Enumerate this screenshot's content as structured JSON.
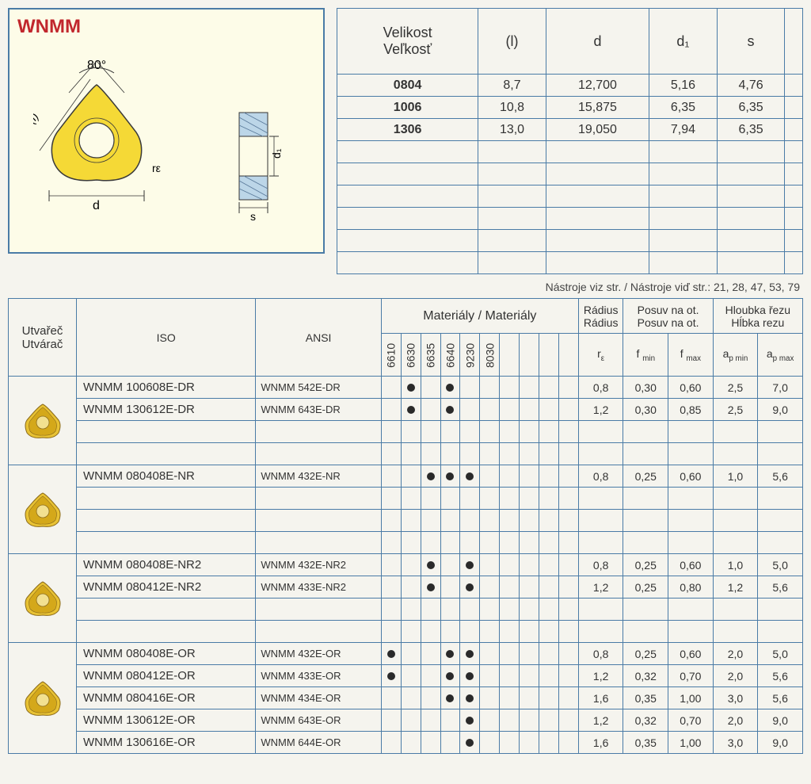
{
  "title": "WNMM",
  "diagram": {
    "angle_label": "80°",
    "r_label": "rε",
    "l_label": "(l)",
    "d_label": "d",
    "d1_label": "d₁",
    "s_label": "s",
    "insert_fill": "#f5d936",
    "insert_stroke": "#3a3a3a"
  },
  "size_table": {
    "headers": [
      "Velikost\nVeľkosť",
      "(l)",
      "d",
      "d₁",
      "s",
      ""
    ],
    "rows": [
      {
        "code": "0804",
        "l": "8,7",
        "d": "12,700",
        "d1": "5,16",
        "s": "4,76"
      },
      {
        "code": "1006",
        "l": "10,8",
        "d": "15,875",
        "d1": "6,35",
        "s": "6,35"
      },
      {
        "code": "1306",
        "l": "13,0",
        "d": "19,050",
        "d1": "7,94",
        "s": "6,35"
      }
    ],
    "empty_rows": 6
  },
  "note": "Nástroje viz str. / Nástroje viď str.: 21, 28, 47, 53, 79",
  "main_table": {
    "chip_header": "Utvařeč\nUtvárač",
    "iso_header": "ISO",
    "ansi_header": "ANSI",
    "materials_header": "Materiály / Materiály",
    "radius_header": "Rádius\nRádius",
    "feed_header": "Posuv na ot.\nPosuv na ot.",
    "depth_header": "Hloubka řezu\nHĺbka rezu",
    "material_codes": [
      "6610",
      "6630",
      "6635",
      "6640",
      "9230",
      "8030",
      "",
      "",
      "",
      ""
    ],
    "r_label": "rε",
    "fmin_label": "f min",
    "fmax_label": "f max",
    "apmin_label": "ap min",
    "apmax_label": "ap max",
    "groups": [
      {
        "rows": [
          {
            "iso": "WNMM 100608E-DR",
            "ansi": "WNMM 542E-DR",
            "mats": [
              0,
              1,
              0,
              1,
              0,
              0,
              0,
              0,
              0,
              0
            ],
            "r": "0,8",
            "fmin": "0,30",
            "fmax": "0,60",
            "apmin": "2,5",
            "apmax": "7,0"
          },
          {
            "iso": "WNMM 130612E-DR",
            "ansi": "WNMM 643E-DR",
            "mats": [
              0,
              1,
              0,
              1,
              0,
              0,
              0,
              0,
              0,
              0
            ],
            "r": "1,2",
            "fmin": "0,30",
            "fmax": "0,85",
            "apmin": "2,5",
            "apmax": "9,0"
          },
          {
            "iso": "",
            "ansi": "",
            "mats": [
              0,
              0,
              0,
              0,
              0,
              0,
              0,
              0,
              0,
              0
            ],
            "r": "",
            "fmin": "",
            "fmax": "",
            "apmin": "",
            "apmax": ""
          },
          {
            "iso": "",
            "ansi": "",
            "mats": [
              0,
              0,
              0,
              0,
              0,
              0,
              0,
              0,
              0,
              0
            ],
            "r": "",
            "fmin": "",
            "fmax": "",
            "apmin": "",
            "apmax": ""
          }
        ]
      },
      {
        "rows": [
          {
            "iso": "WNMM 080408E-NR",
            "ansi": "WNMM 432E-NR",
            "mats": [
              0,
              0,
              1,
              1,
              1,
              0,
              0,
              0,
              0,
              0
            ],
            "r": "0,8",
            "fmin": "0,25",
            "fmax": "0,60",
            "apmin": "1,0",
            "apmax": "5,6"
          },
          {
            "iso": "",
            "ansi": "",
            "mats": [
              0,
              0,
              0,
              0,
              0,
              0,
              0,
              0,
              0,
              0
            ],
            "r": "",
            "fmin": "",
            "fmax": "",
            "apmin": "",
            "apmax": ""
          },
          {
            "iso": "",
            "ansi": "",
            "mats": [
              0,
              0,
              0,
              0,
              0,
              0,
              0,
              0,
              0,
              0
            ],
            "r": "",
            "fmin": "",
            "fmax": "",
            "apmin": "",
            "apmax": ""
          },
          {
            "iso": "",
            "ansi": "",
            "mats": [
              0,
              0,
              0,
              0,
              0,
              0,
              0,
              0,
              0,
              0
            ],
            "r": "",
            "fmin": "",
            "fmax": "",
            "apmin": "",
            "apmax": ""
          }
        ]
      },
      {
        "rows": [
          {
            "iso": "WNMM 080408E-NR2",
            "ansi": "WNMM 432E-NR2",
            "mats": [
              0,
              0,
              1,
              0,
              1,
              0,
              0,
              0,
              0,
              0
            ],
            "r": "0,8",
            "fmin": "0,25",
            "fmax": "0,60",
            "apmin": "1,0",
            "apmax": "5,0"
          },
          {
            "iso": "WNMM 080412E-NR2",
            "ansi": "WNMM 433E-NR2",
            "mats": [
              0,
              0,
              1,
              0,
              1,
              0,
              0,
              0,
              0,
              0
            ],
            "r": "1,2",
            "fmin": "0,25",
            "fmax": "0,80",
            "apmin": "1,2",
            "apmax": "5,6"
          },
          {
            "iso": "",
            "ansi": "",
            "mats": [
              0,
              0,
              0,
              0,
              0,
              0,
              0,
              0,
              0,
              0
            ],
            "r": "",
            "fmin": "",
            "fmax": "",
            "apmin": "",
            "apmax": ""
          },
          {
            "iso": "",
            "ansi": "",
            "mats": [
              0,
              0,
              0,
              0,
              0,
              0,
              0,
              0,
              0,
              0
            ],
            "r": "",
            "fmin": "",
            "fmax": "",
            "apmin": "",
            "apmax": ""
          }
        ]
      },
      {
        "rows": [
          {
            "iso": "WNMM 080408E-OR",
            "ansi": "WNMM 432E-OR",
            "mats": [
              1,
              0,
              0,
              1,
              1,
              0,
              0,
              0,
              0,
              0
            ],
            "r": "0,8",
            "fmin": "0,25",
            "fmax": "0,60",
            "apmin": "2,0",
            "apmax": "5,0"
          },
          {
            "iso": "WNMM 080412E-OR",
            "ansi": "WNMM 433E-OR",
            "mats": [
              1,
              0,
              0,
              1,
              1,
              0,
              0,
              0,
              0,
              0
            ],
            "r": "1,2",
            "fmin": "0,32",
            "fmax": "0,70",
            "apmin": "2,0",
            "apmax": "5,6"
          },
          {
            "iso": "WNMM 080416E-OR",
            "ansi": "WNMM 434E-OR",
            "mats": [
              0,
              0,
              0,
              1,
              1,
              0,
              0,
              0,
              0,
              0
            ],
            "r": "1,6",
            "fmin": "0,35",
            "fmax": "1,00",
            "apmin": "3,0",
            "apmax": "5,6"
          },
          {
            "iso": "WNMM 130612E-OR",
            "ansi": "WNMM 643E-OR",
            "mats": [
              0,
              0,
              0,
              0,
              1,
              0,
              0,
              0,
              0,
              0
            ],
            "r": "1,2",
            "fmin": "0,32",
            "fmax": "0,70",
            "apmin": "2,0",
            "apmax": "9,0"
          },
          {
            "iso": "WNMM 130616E-OR",
            "ansi": "WNMM 644E-OR",
            "mats": [
              0,
              0,
              0,
              0,
              1,
              0,
              0,
              0,
              0,
              0
            ],
            "r": "1,6",
            "fmin": "0,35",
            "fmax": "1,00",
            "apmin": "3,0",
            "apmax": "9,0"
          }
        ]
      }
    ]
  }
}
